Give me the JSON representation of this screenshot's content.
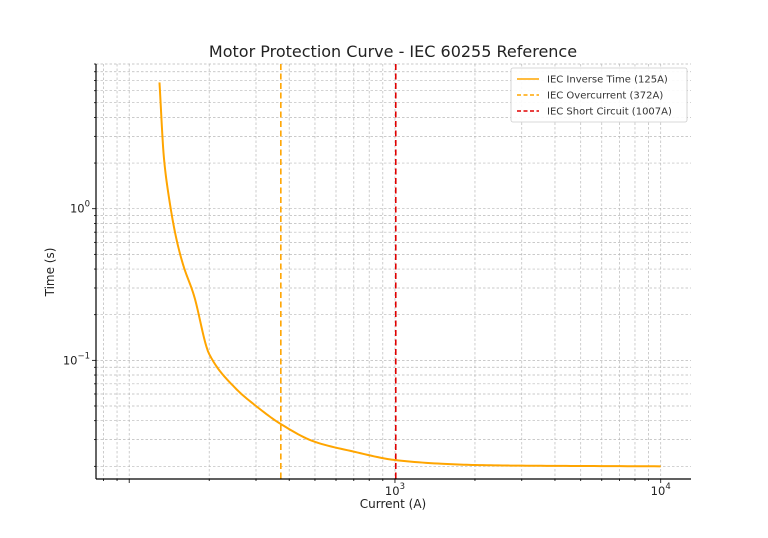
{
  "chart_data": {
    "type": "line",
    "title": "Motor Protection Curve - IEC 60255 Reference",
    "xlabel": "Current (A)",
    "ylabel": "Time (s)",
    "xscale": "log",
    "yscale": "log",
    "xlim": [
      75,
      13000
    ],
    "ylim": [
      0.0165,
      9
    ],
    "grid": true,
    "legend_position": "top-right",
    "x_ticks": [
      {
        "value": 1000,
        "base": "10",
        "exp": "3"
      },
      {
        "value": 10000,
        "base": "10",
        "exp": "4"
      }
    ],
    "y_ticks": [
      {
        "value": 1,
        "base": "10",
        "exp": "0"
      },
      {
        "value": 0.1,
        "base": "10",
        "exp": "−1"
      }
    ],
    "series": [
      {
        "name": "IEC Inverse Time (125A)",
        "kind": "curve",
        "color": "#FFA500",
        "style": "solid",
        "x": [
          130,
          135,
          140,
          150,
          160,
          175,
          200,
          250,
          300,
          372,
          500,
          700,
          1000,
          1500,
          2000,
          3000,
          5000,
          10000
        ],
        "y": [
          6.8,
          2.2,
          1.3,
          0.65,
          0.42,
          0.27,
          0.11,
          0.066,
          0.05,
          0.038,
          0.029,
          0.025,
          0.022,
          0.0208,
          0.0204,
          0.0202,
          0.0201,
          0.02
        ]
      },
      {
        "name": "IEC Overcurrent (372A)",
        "kind": "vline",
        "x": 372,
        "color": "#FFA500",
        "style": "dashed"
      },
      {
        "name": "IEC Short Circuit (1007A)",
        "kind": "vline",
        "x": 1007,
        "color": "#E00000",
        "style": "dashed"
      }
    ]
  }
}
